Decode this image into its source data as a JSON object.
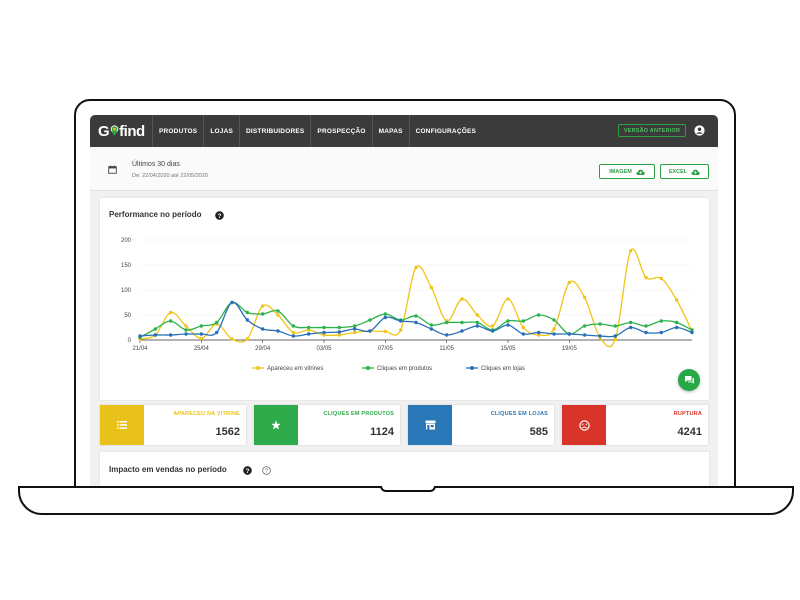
{
  "app": {
    "logo_prefix": "G",
    "logo_suffix": "find"
  },
  "navbar": {
    "items": [
      "PRODUTOS",
      "LOJAS",
      "DISTRIBUIDORES",
      "PROSPECÇÃO",
      "MAPAS",
      "CONFIGURAÇÕES"
    ],
    "version_button": "VERSÃO ANTERIOR"
  },
  "filter": {
    "title": "Últimos 30 dias",
    "subtitle": "De: 22/04/2020 até 22/05/2020",
    "image_button": "IMAGEM",
    "excel_button": "EXCEL"
  },
  "performance": {
    "title": "Performance no período"
  },
  "chart_data": {
    "type": "line",
    "title": "Performance no período",
    "ylim": [
      0,
      200
    ],
    "y_ticks": [
      "200",
      "150",
      "100",
      "50",
      "0"
    ],
    "x_tick_labels": [
      "21/04",
      "25/04",
      "29/04",
      "03/05",
      "07/05",
      "11/05",
      "15/05",
      "19/05"
    ],
    "legend_position": "bottom",
    "series": [
      {
        "name": "Apareceu em vitrines",
        "color": "#f0c419",
        "values": [
          2,
          10,
          55,
          28,
          3,
          32,
          2,
          2,
          68,
          50,
          15,
          20,
          10,
          10,
          15,
          18,
          17,
          20,
          145,
          105,
          38,
          82,
          50,
          28,
          82,
          25,
          10,
          22,
          115,
          85,
          5,
          2,
          178,
          125,
          123,
          80,
          18
        ]
      },
      {
        "name": "Cliques em produtos",
        "color": "#2db14a",
        "values": [
          5,
          22,
          38,
          20,
          28,
          35,
          75,
          55,
          52,
          58,
          28,
          25,
          25,
          25,
          28,
          40,
          52,
          40,
          48,
          30,
          35,
          35,
          35,
          20,
          38,
          38,
          50,
          40,
          12,
          28,
          32,
          28,
          35,
          28,
          38,
          35,
          20
        ]
      },
      {
        "name": "Cliques em lojas",
        "color": "#2770b8",
        "values": [
          8,
          10,
          10,
          12,
          12,
          15,
          75,
          40,
          22,
          18,
          8,
          12,
          15,
          16,
          22,
          18,
          45,
          38,
          35,
          22,
          10,
          18,
          28,
          18,
          30,
          12,
          15,
          12,
          12,
          10,
          8,
          8,
          25,
          15,
          15,
          25,
          15
        ]
      }
    ]
  },
  "kpis": [
    {
      "label": "APARECEU NA VITRINE",
      "value": "1562",
      "color": "#e8c21b",
      "icon": "list-icon"
    },
    {
      "label": "CLIQUES EM PRODUTOS",
      "value": "1124",
      "color": "#2eaa4a",
      "icon": "star-icon"
    },
    {
      "label": "CLIQUES EM LOJAS",
      "value": "585",
      "color": "#2b78b8",
      "icon": "store-icon"
    },
    {
      "label": "RUPTURA",
      "value": "4241",
      "color": "#d8342a",
      "icon": "sad-face-icon"
    }
  ],
  "impact": {
    "title": "Impacto em vendas no período"
  }
}
